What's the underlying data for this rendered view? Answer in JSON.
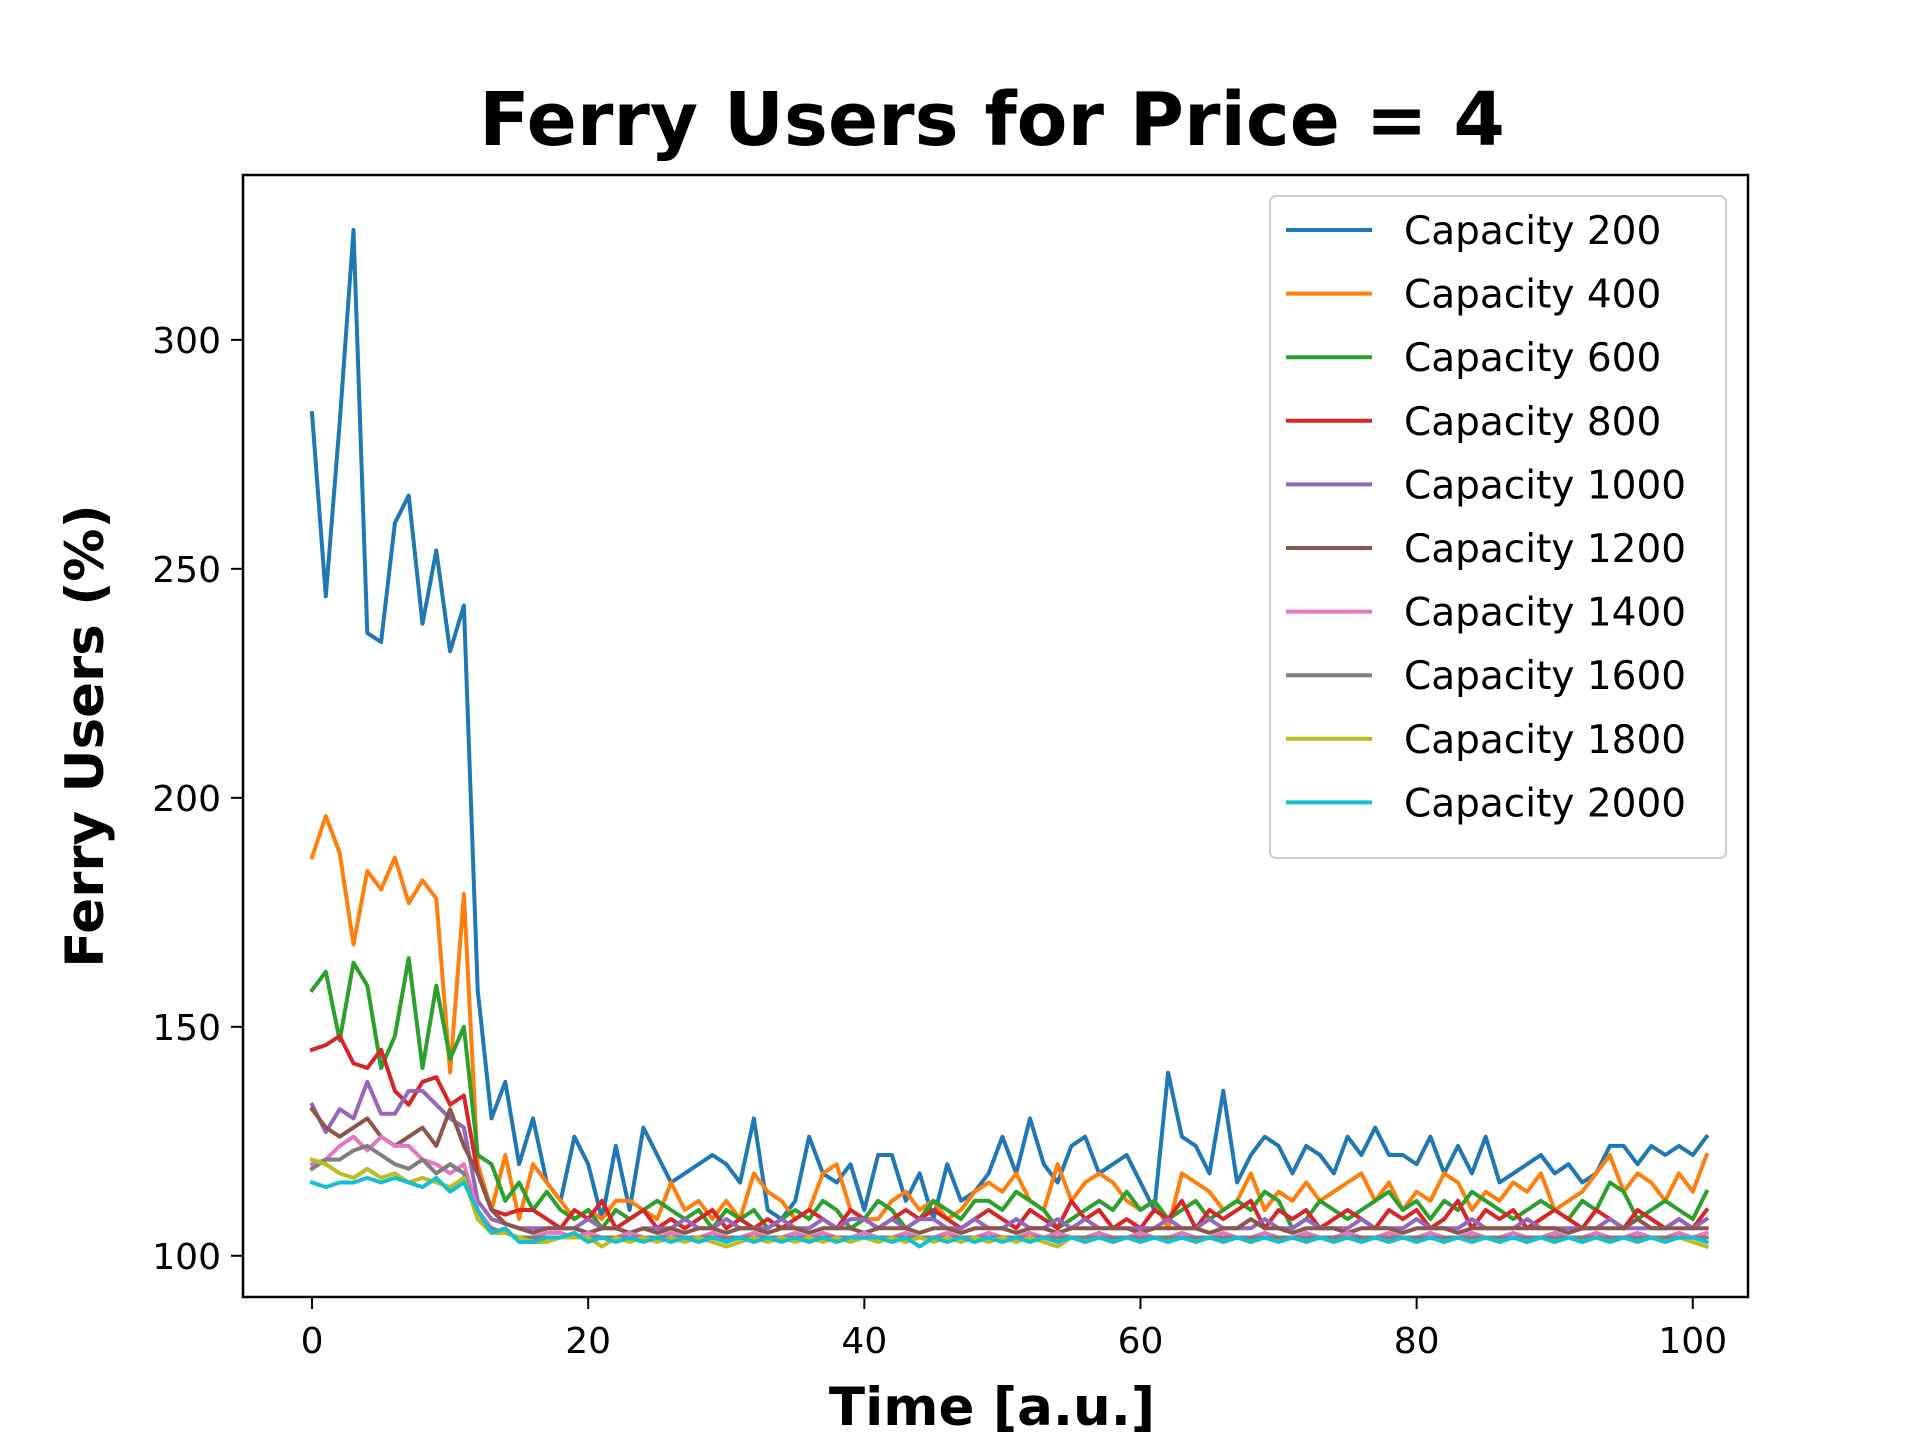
{
  "chart_data": {
    "type": "line",
    "title": "Ferry Users for Price = 4",
    "xlabel": "Time [a.u.]",
    "ylabel": "Ferry Users (%)",
    "xlim": [
      -5,
      104
    ],
    "ylim": [
      91,
      336
    ],
    "xticks": [
      0,
      20,
      40,
      60,
      80,
      100
    ],
    "yticks": [
      100,
      150,
      200,
      250,
      300
    ],
    "grid": false,
    "legend_position": "top-right",
    "series": [
      {
        "name": "Capacity 200",
        "color": "#1f77b4",
        "values": [
          284,
          244,
          282,
          324,
          236,
          234,
          260,
          266,
          238,
          254,
          232,
          242,
          158,
          130,
          138,
          120,
          130,
          116,
          112,
          126,
          120,
          108,
          124,
          110,
          128,
          122,
          116,
          118,
          120,
          122,
          120,
          116,
          130,
          110,
          108,
          112,
          126,
          118,
          116,
          120,
          110,
          122,
          122,
          112,
          118,
          108,
          120,
          112,
          114,
          118,
          126,
          118,
          130,
          120,
          116,
          124,
          126,
          118,
          120,
          122,
          116,
          110,
          140,
          126,
          124,
          118,
          136,
          116,
          122,
          126,
          124,
          118,
          124,
          122,
          118,
          126,
          122,
          128,
          122,
          122,
          120,
          126,
          118,
          124,
          118,
          126,
          116,
          118,
          120,
          122,
          118,
          120,
          116,
          118,
          124,
          124,
          120,
          124,
          122,
          124,
          122,
          126
        ]
      },
      {
        "name": "Capacity 400",
        "color": "#ff7f0e",
        "values": [
          187,
          196,
          188,
          168,
          184,
          180,
          187,
          177,
          182,
          178,
          140,
          179,
          120,
          110,
          122,
          108,
          120,
          116,
          112,
          108,
          110,
          108,
          112,
          112,
          110,
          108,
          116,
          110,
          112,
          108,
          112,
          108,
          118,
          114,
          112,
          108,
          110,
          118,
          120,
          110,
          108,
          108,
          112,
          114,
          110,
          112,
          108,
          110,
          114,
          116,
          114,
          118,
          112,
          110,
          120,
          112,
          116,
          118,
          116,
          112,
          110,
          112,
          106,
          118,
          116,
          114,
          110,
          112,
          118,
          110,
          114,
          112,
          116,
          112,
          114,
          116,
          118,
          112,
          116,
          110,
          114,
          112,
          118,
          116,
          110,
          114,
          112,
          116,
          114,
          118,
          110,
          112,
          114,
          118,
          122,
          114,
          118,
          116,
          112,
          118,
          114,
          122
        ]
      },
      {
        "name": "Capacity 600",
        "color": "#2ca02c",
        "values": [
          158,
          162,
          147,
          164,
          159,
          141,
          148,
          165,
          141,
          159,
          143,
          150,
          122,
          120,
          112,
          116,
          110,
          114,
          110,
          108,
          110,
          106,
          110,
          108,
          110,
          112,
          110,
          108,
          110,
          106,
          110,
          108,
          110,
          106,
          108,
          110,
          108,
          112,
          110,
          106,
          108,
          112,
          110,
          106,
          108,
          112,
          110,
          108,
          112,
          112,
          110,
          114,
          112,
          110,
          106,
          108,
          110,
          112,
          110,
          114,
          110,
          112,
          108,
          110,
          112,
          108,
          110,
          112,
          110,
          114,
          112,
          106,
          108,
          112,
          110,
          108,
          110,
          112,
          114,
          110,
          112,
          108,
          112,
          110,
          114,
          112,
          110,
          108,
          110,
          112,
          110,
          108,
          112,
          110,
          116,
          114,
          108,
          110,
          112,
          110,
          108,
          114
        ]
      },
      {
        "name": "Capacity 800",
        "color": "#d62728",
        "values": [
          145,
          146,
          148,
          142,
          141,
          145,
          136,
          133,
          138,
          139,
          133,
          135,
          118,
          110,
          109,
          110,
          110,
          108,
          106,
          110,
          108,
          112,
          106,
          108,
          110,
          106,
          108,
          106,
          108,
          110,
          106,
          108,
          106,
          108,
          106,
          108,
          110,
          108,
          106,
          110,
          108,
          106,
          108,
          110,
          108,
          110,
          108,
          106,
          108,
          110,
          108,
          106,
          110,
          108,
          106,
          112,
          108,
          110,
          106,
          108,
          106,
          110,
          108,
          112,
          106,
          110,
          108,
          110,
          112,
          106,
          110,
          108,
          110,
          106,
          108,
          110,
          108,
          106,
          110,
          108,
          110,
          106,
          108,
          112,
          106,
          110,
          108,
          110,
          106,
          108,
          110,
          108,
          106,
          110,
          108,
          106,
          110,
          108,
          106,
          108,
          106,
          110
        ]
      },
      {
        "name": "Capacity 1000",
        "color": "#9467bd",
        "values": [
          133,
          127,
          132,
          130,
          138,
          131,
          131,
          136,
          136,
          133,
          130,
          128,
          112,
          108,
          107,
          106,
          106,
          106,
          106,
          106,
          108,
          106,
          106,
          105,
          106,
          106,
          106,
          108,
          106,
          106,
          108,
          106,
          106,
          106,
          108,
          106,
          106,
          108,
          106,
          108,
          108,
          106,
          108,
          106,
          108,
          108,
          106,
          106,
          108,
          106,
          106,
          108,
          106,
          106,
          108,
          106,
          108,
          106,
          106,
          106,
          106,
          106,
          108,
          106,
          106,
          108,
          106,
          106,
          106,
          108,
          106,
          106,
          108,
          106,
          106,
          106,
          108,
          106,
          106,
          106,
          108,
          106,
          106,
          106,
          108,
          106,
          106,
          106,
          108,
          106,
          106,
          106,
          106,
          106,
          108,
          106,
          106,
          106,
          106,
          108,
          106,
          108
        ]
      },
      {
        "name": "Capacity 1200",
        "color": "#8c564b",
        "values": [
          132,
          128,
          126,
          128,
          130,
          126,
          124,
          126,
          128,
          124,
          132,
          124,
          118,
          110,
          107,
          106,
          105,
          106,
          106,
          106,
          105,
          106,
          106,
          105,
          106,
          105,
          106,
          105,
          106,
          106,
          105,
          106,
          106,
          105,
          106,
          106,
          105,
          106,
          106,
          106,
          105,
          106,
          106,
          106,
          105,
          106,
          106,
          105,
          106,
          106,
          106,
          105,
          106,
          106,
          105,
          106,
          106,
          106,
          106,
          106,
          105,
          106,
          106,
          106,
          106,
          105,
          106,
          106,
          108,
          106,
          106,
          105,
          106,
          106,
          106,
          105,
          106,
          106,
          106,
          105,
          106,
          106,
          106,
          105,
          106,
          106,
          106,
          106,
          106,
          106,
          106,
          105,
          106,
          106,
          106,
          106,
          108,
          106,
          106,
          106,
          106,
          106
        ]
      },
      {
        "name": "Capacity 1400",
        "color": "#e377c2",
        "values": [
          120,
          121,
          124,
          126,
          123,
          126,
          124,
          124,
          121,
          120,
          118,
          120,
          110,
          106,
          105,
          104,
          104,
          105,
          105,
          104,
          105,
          104,
          104,
          105,
          104,
          104,
          105,
          104,
          104,
          105,
          104,
          104,
          105,
          104,
          104,
          105,
          104,
          105,
          104,
          104,
          105,
          104,
          104,
          105,
          104,
          104,
          105,
          104,
          104,
          105,
          104,
          104,
          105,
          104,
          105,
          104,
          104,
          105,
          104,
          104,
          105,
          104,
          104,
          105,
          104,
          104,
          105,
          104,
          104,
          105,
          104,
          104,
          105,
          104,
          104,
          105,
          104,
          104,
          105,
          104,
          104,
          105,
          104,
          104,
          105,
          104,
          104,
          105,
          104,
          104,
          105,
          104,
          104,
          105,
          104,
          104,
          105,
          104,
          104,
          105,
          104,
          105
        ]
      },
      {
        "name": "Capacity 1600",
        "color": "#7f7f7f",
        "values": [
          119,
          121,
          121,
          123,
          124,
          122,
          120,
          119,
          121,
          118,
          120,
          118,
          108,
          106,
          105,
          104,
          104,
          104,
          104,
          104,
          104,
          104,
          104,
          104,
          104,
          104,
          104,
          104,
          104,
          104,
          104,
          104,
          104,
          104,
          104,
          104,
          104,
          104,
          104,
          104,
          104,
          104,
          104,
          104,
          104,
          104,
          104,
          104,
          104,
          104,
          104,
          104,
          104,
          104,
          104,
          104,
          104,
          104,
          104,
          104,
          104,
          104,
          104,
          104,
          104,
          104,
          104,
          104,
          104,
          104,
          104,
          104,
          104,
          104,
          104,
          104,
          104,
          104,
          104,
          104,
          104,
          104,
          104,
          104,
          104,
          104,
          104,
          104,
          104,
          104,
          104,
          104,
          104,
          104,
          104,
          104,
          104,
          104,
          104,
          104,
          104,
          104
        ]
      },
      {
        "name": "Capacity 1800",
        "color": "#bcbd22",
        "values": [
          121,
          120,
          118,
          117,
          119,
          117,
          118,
          116,
          117,
          116,
          115,
          117,
          108,
          105,
          105,
          104,
          103,
          103,
          104,
          104,
          104,
          102,
          104,
          103,
          104,
          103,
          104,
          103,
          104,
          103,
          102,
          103,
          104,
          103,
          104,
          103,
          104,
          103,
          104,
          103,
          104,
          103,
          104,
          103,
          104,
          103,
          104,
          103,
          104,
          103,
          104,
          103,
          104,
          103,
          102,
          104,
          103,
          104,
          103,
          104,
          103,
          104,
          103,
          104,
          103,
          104,
          103,
          104,
          103,
          104,
          103,
          104,
          103,
          104,
          103,
          104,
          103,
          104,
          103,
          104,
          103,
          104,
          103,
          104,
          103,
          104,
          103,
          104,
          103,
          104,
          103,
          104,
          103,
          104,
          103,
          104,
          103,
          104,
          103,
          104,
          103,
          102
        ]
      },
      {
        "name": "Capacity 2000",
        "color": "#17becf",
        "values": [
          116,
          115,
          116,
          116,
          117,
          116,
          117,
          116,
          115,
          117,
          114,
          116,
          110,
          105,
          106,
          103,
          103,
          104,
          104,
          105,
          103,
          104,
          103,
          104,
          103,
          104,
          103,
          104,
          103,
          104,
          103,
          104,
          103,
          104,
          103,
          104,
          103,
          104,
          103,
          104,
          104,
          104,
          103,
          104,
          102,
          104,
          103,
          104,
          103,
          104,
          103,
          104,
          103,
          104,
          103,
          104,
          103,
          104,
          103,
          104,
          103,
          104,
          103,
          104,
          103,
          104,
          103,
          104,
          103,
          104,
          103,
          104,
          103,
          104,
          103,
          104,
          103,
          104,
          103,
          104,
          103,
          104,
          103,
          104,
          103,
          104,
          103,
          104,
          103,
          104,
          103,
          104,
          103,
          104,
          103,
          104,
          103,
          104,
          103,
          104,
          104,
          103
        ]
      }
    ]
  }
}
